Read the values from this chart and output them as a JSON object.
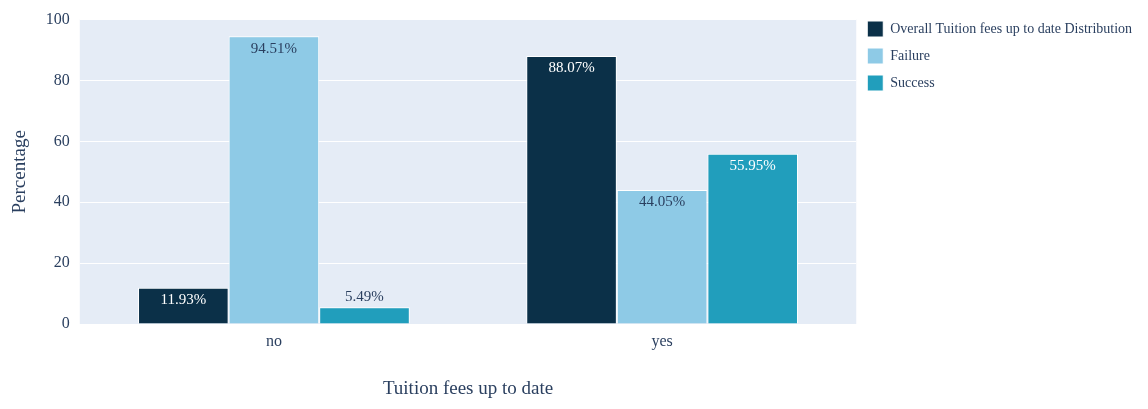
{
  "chart_data": {
    "type": "bar",
    "xlabel": "Tuition fees up to date",
    "ylabel": "Percentage",
    "categories": [
      "no",
      "yes"
    ],
    "series": [
      {
        "name": "Overall Tuition fees up to date Distribution",
        "color": "#0b3048",
        "values": [
          11.93,
          88.07
        ],
        "value_labels": [
          "11.93%",
          "88.07%"
        ]
      },
      {
        "name": "Failure",
        "color": "#8ecae6",
        "values": [
          94.51,
          44.05
        ],
        "value_labels": [
          "94.51%",
          "44.05%"
        ]
      },
      {
        "name": "Success",
        "color": "#219ebc",
        "values": [
          5.49,
          55.95
        ],
        "value_labels": [
          "5.49%",
          "55.95%"
        ]
      }
    ],
    "ylim": [
      0,
      100
    ],
    "yticks": [
      0,
      20,
      40,
      60,
      80,
      100
    ],
    "grid": "y",
    "legend": "top right"
  }
}
